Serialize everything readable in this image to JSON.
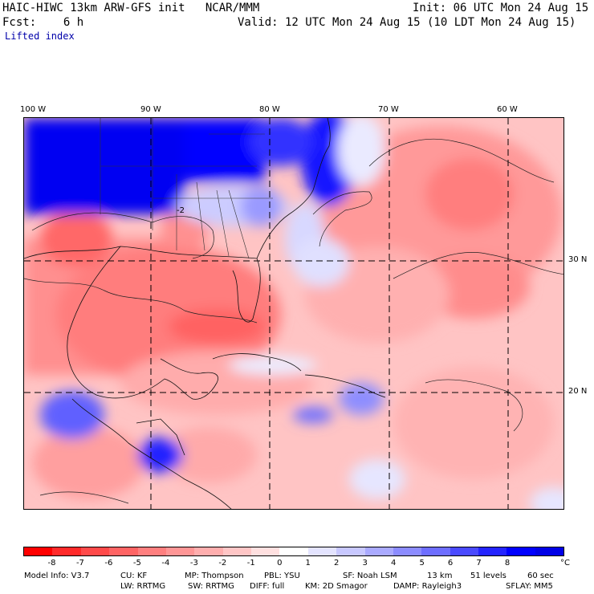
{
  "header": {
    "line1_left": "HAIC-HIWC 13km ARW-GFS init   NCAR/MMM",
    "line1_right": "Init: 06 UTC Mon 24 Aug 15",
    "line2_left": "Fcst:    6 h",
    "line2_right": "Valid: 12 UTC Mon 24 Aug 15 (10 LDT Mon 24 Aug 15)",
    "field_name": "Lifted index"
  },
  "map": {
    "lon_labels": [
      "100 W",
      "90 W",
      "80 W",
      "70 W",
      "60 W"
    ],
    "lat_labels": [
      "30 N",
      "20 N"
    ],
    "contour_label": "-2"
  },
  "colorbar": {
    "ticks": [
      "-8",
      "-7",
      "-6",
      "-5",
      "-4",
      "-3",
      "-2",
      "-1",
      "0",
      "1",
      "2",
      "3",
      "4",
      "5",
      "6",
      "7",
      "8"
    ],
    "unit": "°C",
    "colors": [
      "#ff0000",
      "#ff2a2a",
      "#ff4a4a",
      "#ff6464",
      "#ff7f7f",
      "#ff9696",
      "#ffaeae",
      "#ffc6c6",
      "#ffe0e0",
      "#ffffff",
      "#e4e4ff",
      "#c8c8ff",
      "#aaaaff",
      "#8c8cff",
      "#6e6eff",
      "#4a4aff",
      "#2424ff",
      "#0000ff",
      "#0000e6"
    ]
  },
  "footer": {
    "line1": [
      "Model Info: V3.7",
      "CU: KF",
      "MP: Thompson",
      "PBL: YSU",
      "SF: Noah LSM",
      "13 km",
      "51 levels",
      "60 sec"
    ],
    "line2": [
      "LW: RRTMG",
      "SW: RRTMG",
      "DIFF: full",
      "KM: 2D Smagor",
      "DAMP: Rayleigh3",
      "SFLAY: MM5"
    ]
  }
}
